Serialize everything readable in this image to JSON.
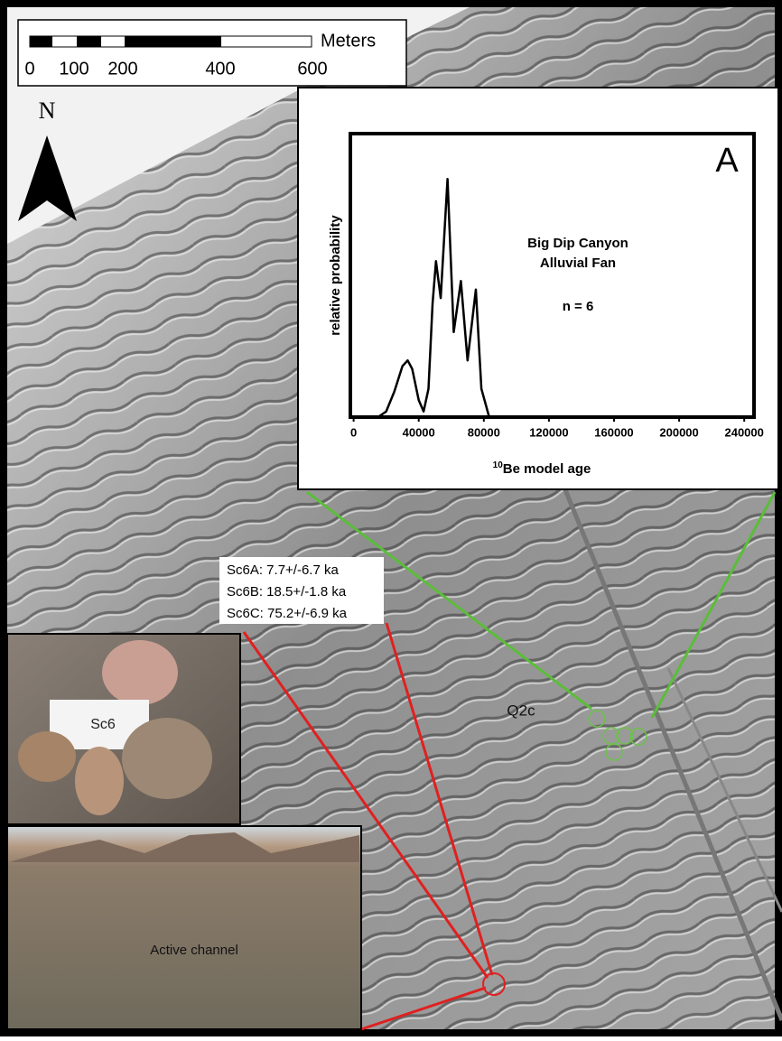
{
  "map": {
    "scale_bar": {
      "unit": "Meters",
      "labels": [
        "0",
        "100",
        "200",
        "400",
        "600"
      ]
    },
    "north": "N",
    "sample_ages": [
      "Sc6A: 7.7+/-6.7 ka",
      "Sc6B: 18.5+/-1.8 ka",
      "Sc6C: 75.2+/-6.9 ka"
    ],
    "surface_label": "Q2c",
    "photo_labels": [
      "Sc6",
      "Active channel"
    ]
  },
  "chart_data": {
    "type": "line",
    "panel_label": "A",
    "annotations": [
      "Big Dip Canyon",
      "Alluvial Fan",
      "n = 6"
    ],
    "xlabel_superscript": "10",
    "xlabel": "Be model age",
    "ylabel": "relative probability",
    "xlim": [
      -2000,
      246000
    ],
    "ylim": [
      0,
      1
    ],
    "xticks": [
      0,
      40000,
      80000,
      120000,
      160000,
      200000,
      240000
    ],
    "color": "#000000",
    "x": [
      10000,
      15000,
      20000,
      25000,
      30000,
      33200,
      36000,
      40000,
      43000,
      46000,
      48500,
      50600,
      53500,
      57700,
      61500,
      65900,
      70000,
      75100,
      78500,
      83300,
      90000,
      240000
    ],
    "values": [
      0,
      0,
      0.02,
      0.09,
      0.18,
      0.2,
      0.17,
      0.06,
      0.02,
      0.1,
      0.4,
      0.55,
      0.42,
      0.84,
      0.3,
      0.48,
      0.2,
      0.45,
      0.1,
      0,
      0,
      0
    ]
  }
}
